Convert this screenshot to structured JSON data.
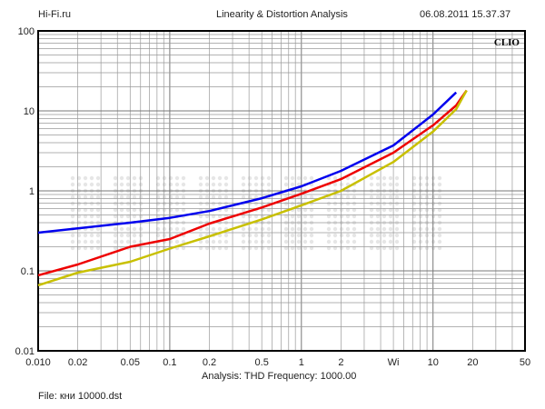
{
  "header": {
    "site": "Hi-Fi.ru",
    "title": "Linearity & Distortion Analysis",
    "datetime": "06.08.2011 15.37.37"
  },
  "footer": {
    "analysis": "Analysis: THD   Frequency: 1000.00",
    "file": "File: кни 10000.dst"
  },
  "chart_data": {
    "type": "line",
    "title": "Linearity & Distortion Analysis",
    "brand_label": "CLIO",
    "xlabel": "Wi",
    "ylabel": "",
    "xscale": "log",
    "yscale": "log",
    "xlim": [
      0.01,
      50
    ],
    "ylim": [
      0.01,
      100
    ],
    "grid": true,
    "xticks": [
      "0.010",
      "0.02",
      "0.05",
      "0.1",
      "0.2",
      "0.5",
      "1",
      "2",
      "Wi",
      "10",
      "20",
      "50"
    ],
    "xtick_values": [
      0.01,
      0.02,
      0.05,
      0.1,
      0.2,
      0.5,
      1,
      2,
      5,
      10,
      20,
      50
    ],
    "yticks": [
      "100",
      "10",
      "1",
      "0.1",
      "0.01"
    ],
    "ytick_values": [
      100,
      10,
      1,
      0.1,
      0.01
    ],
    "series": [
      {
        "name": "blue",
        "color": "#0000ee",
        "x": [
          0.01,
          0.02,
          0.05,
          0.1,
          0.2,
          0.5,
          1,
          2,
          5,
          10,
          15
        ],
        "y": [
          0.3,
          0.34,
          0.4,
          0.46,
          0.56,
          0.81,
          1.14,
          1.78,
          3.7,
          9,
          17
        ]
      },
      {
        "name": "red",
        "color": "#ee0000",
        "x": [
          0.01,
          0.02,
          0.05,
          0.1,
          0.2,
          0.5,
          1,
          2,
          5,
          10,
          15,
          18
        ],
        "y": [
          0.088,
          0.12,
          0.2,
          0.25,
          0.39,
          0.62,
          0.92,
          1.4,
          3,
          6.6,
          11.7,
          18
        ]
      },
      {
        "name": "yellow",
        "color": "#c8c000",
        "x": [
          0.01,
          0.02,
          0.05,
          0.1,
          0.2,
          0.5,
          1,
          2,
          5,
          10,
          15,
          18
        ],
        "y": [
          0.066,
          0.095,
          0.13,
          0.19,
          0.27,
          0.44,
          0.66,
          1.0,
          2.3,
          5.5,
          10.5,
          18
        ]
      }
    ]
  }
}
